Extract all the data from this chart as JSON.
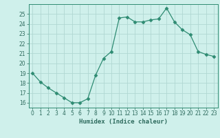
{
  "x": [
    0,
    1,
    2,
    3,
    4,
    5,
    6,
    7,
    8,
    9,
    10,
    11,
    12,
    13,
    14,
    15,
    16,
    17,
    18,
    19,
    20,
    21,
    22,
    23
  ],
  "y": [
    19.0,
    18.1,
    17.5,
    17.0,
    16.5,
    16.0,
    16.0,
    16.4,
    18.8,
    20.5,
    21.2,
    24.6,
    24.7,
    24.2,
    24.2,
    24.4,
    24.5,
    25.6,
    24.2,
    23.4,
    22.9,
    21.2,
    20.9,
    20.7
  ],
  "line_color": "#2e8b72",
  "marker": "D",
  "marker_size": 2.5,
  "bg_color": "#cff0eb",
  "grid_color": "#b0d8d2",
  "xlabel": "Humidex (Indice chaleur)",
  "ylim": [
    15.5,
    26.0
  ],
  "xlim": [
    -0.5,
    23.5
  ],
  "yticks": [
    16,
    17,
    18,
    19,
    20,
    21,
    22,
    23,
    24,
    25
  ],
  "xticks": [
    0,
    1,
    2,
    3,
    4,
    5,
    6,
    7,
    8,
    9,
    10,
    11,
    12,
    13,
    14,
    15,
    16,
    17,
    18,
    19,
    20,
    21,
    22,
    23
  ],
  "label_color": "#2e6b5e",
  "tick_color": "#2e6b5e",
  "spine_color": "#2e8b72"
}
